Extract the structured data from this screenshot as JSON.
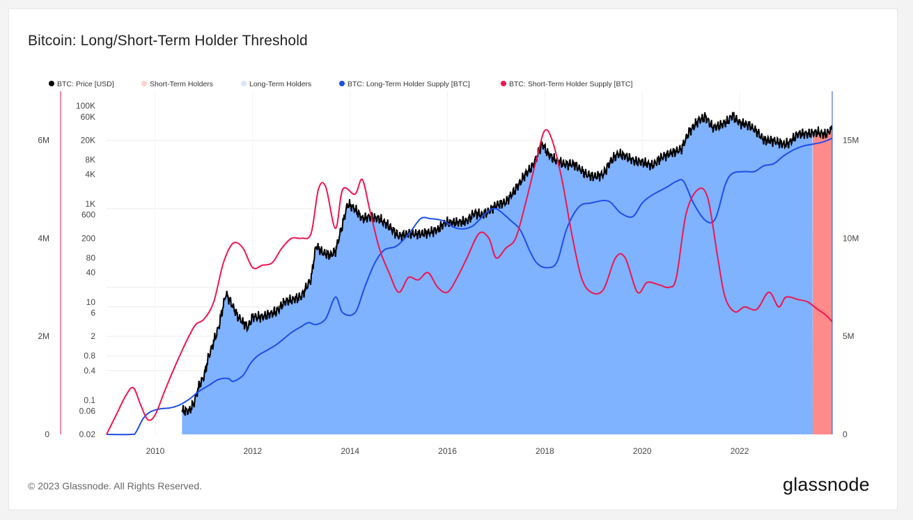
{
  "title": "Bitcoin: Long/Short-Term Holder Threshold",
  "footer": {
    "copyright": "© 2023 Glassnode. All Rights Reserved.",
    "brand": "glassnode"
  },
  "colors": {
    "price": "#000000",
    "sth_area": "#ff8a8a",
    "lth_area": "#7fb2ff",
    "lth_supply": "#1d4de8",
    "sth_supply": "#f0144f",
    "grid": "#ececec"
  },
  "legend": [
    {
      "label": "BTC: Price [USD]",
      "color": "#000000"
    },
    {
      "label": "Short-Term Holders",
      "color": "#ffd0d0"
    },
    {
      "label": "Long-Term Holders",
      "color": "#d6e6ff"
    },
    {
      "label": "BTC: Long-Term Holder Supply [BTC]",
      "color": "#1d4de8"
    },
    {
      "label": "BTC: Short-Term Holder Supply [BTC]",
      "color": "#f0144f"
    }
  ],
  "chart_data": {
    "type": "line",
    "title": "Bitcoin: Long/Short-Term Holder Threshold",
    "legend_position": "top-left",
    "x_ticks": [
      "2010",
      "2012",
      "2014",
      "2016",
      "2018",
      "2020",
      "2022"
    ],
    "x_range": [
      2009.0,
      2023.9
    ],
    "axes": {
      "left_outer": {
        "ticks": [
          "0",
          "2M",
          "4M",
          "6M"
        ],
        "range": [
          0,
          7000000
        ]
      },
      "left_price": {
        "scale": "log",
        "ticks": [
          "0.02",
          "0.06",
          "0.1",
          "0.4",
          "0.8",
          "2",
          "6",
          "10",
          "40",
          "80",
          "200",
          "600",
          "1K",
          "4K",
          "8K",
          "20K",
          "60K",
          "100K"
        ],
        "range": [
          0.02,
          200000
        ]
      },
      "right": {
        "ticks": [
          "0",
          "5M",
          "10M",
          "15M"
        ],
        "range": [
          0,
          17500000
        ]
      }
    },
    "area_regions": [
      {
        "name": "Long-Term Holders",
        "x_start": 2010.55,
        "x_end": 2023.5
      },
      {
        "name": "Short-Term Holders",
        "x_start": 2023.5,
        "x_end": 2023.9
      }
    ],
    "series": [
      {
        "name": "BTC: Price [USD]",
        "axis": "left_price",
        "points": [
          [
            2010.55,
            0.06
          ],
          [
            2010.7,
            0.06
          ],
          [
            2010.8,
            0.09
          ],
          [
            2010.9,
            0.2
          ],
          [
            2011.0,
            0.3
          ],
          [
            2011.1,
            0.8
          ],
          [
            2011.3,
            3
          ],
          [
            2011.45,
            15
          ],
          [
            2011.55,
            10
          ],
          [
            2011.7,
            5
          ],
          [
            2011.9,
            3
          ],
          [
            2012.0,
            5
          ],
          [
            2012.2,
            5
          ],
          [
            2012.5,
            6.5
          ],
          [
            2012.65,
            10
          ],
          [
            2012.8,
            11
          ],
          [
            2013.0,
            13
          ],
          [
            2013.2,
            30
          ],
          [
            2013.3,
            140
          ],
          [
            2013.45,
            100
          ],
          [
            2013.6,
            90
          ],
          [
            2013.7,
            110
          ],
          [
            2013.85,
            400
          ],
          [
            2013.95,
            1000
          ],
          [
            2014.1,
            800
          ],
          [
            2014.25,
            500
          ],
          [
            2014.4,
            550
          ],
          [
            2014.6,
            500
          ],
          [
            2014.8,
            350
          ],
          [
            2015.0,
            220
          ],
          [
            2015.2,
            250
          ],
          [
            2015.4,
            240
          ],
          [
            2015.6,
            260
          ],
          [
            2015.8,
            300
          ],
          [
            2015.95,
            420
          ],
          [
            2016.2,
            420
          ],
          [
            2016.4,
            450
          ],
          [
            2016.55,
            650
          ],
          [
            2016.7,
            600
          ],
          [
            2016.85,
            700
          ],
          [
            2017.0,
            950
          ],
          [
            2017.2,
            1100
          ],
          [
            2017.4,
            2000
          ],
          [
            2017.6,
            4000
          ],
          [
            2017.75,
            6000
          ],
          [
            2017.95,
            17000
          ],
          [
            2018.05,
            11000
          ],
          [
            2018.2,
            8000
          ],
          [
            2018.4,
            6500
          ],
          [
            2018.6,
            6500
          ],
          [
            2018.85,
            4000
          ],
          [
            2019.0,
            3600
          ],
          [
            2019.2,
            4000
          ],
          [
            2019.35,
            7500
          ],
          [
            2019.5,
            10500
          ],
          [
            2019.65,
            9500
          ],
          [
            2019.85,
            7500
          ],
          [
            2020.0,
            7200
          ],
          [
            2020.2,
            6000
          ],
          [
            2020.4,
            9000
          ],
          [
            2020.6,
            11000
          ],
          [
            2020.8,
            13000
          ],
          [
            2020.95,
            28000
          ],
          [
            2021.15,
            50000
          ],
          [
            2021.3,
            60000
          ],
          [
            2021.45,
            36000
          ],
          [
            2021.6,
            40000
          ],
          [
            2021.75,
            48000
          ],
          [
            2021.85,
            64000
          ],
          [
            2022.0,
            45000
          ],
          [
            2022.2,
            40000
          ],
          [
            2022.35,
            30000
          ],
          [
            2022.5,
            20000
          ],
          [
            2022.7,
            19500
          ],
          [
            2022.9,
            16500
          ],
          [
            2023.0,
            17000
          ],
          [
            2023.2,
            27000
          ],
          [
            2023.4,
            27000
          ],
          [
            2023.6,
            29000
          ],
          [
            2023.75,
            26000
          ],
          [
            2023.9,
            34000
          ]
        ]
      },
      {
        "name": "BTC: Long-Term Holder Supply [BTC]",
        "axis": "right",
        "points": [
          [
            2009.0,
            0
          ],
          [
            2009.5,
            0
          ],
          [
            2009.6,
            100000
          ],
          [
            2009.75,
            800000
          ],
          [
            2009.9,
            1150000
          ],
          [
            2010.1,
            1300000
          ],
          [
            2010.3,
            1350000
          ],
          [
            2010.5,
            1500000
          ],
          [
            2010.7,
            1800000
          ],
          [
            2010.9,
            2200000
          ],
          [
            2011.1,
            2500000
          ],
          [
            2011.3,
            2800000
          ],
          [
            2011.5,
            2850000
          ],
          [
            2011.6,
            2700000
          ],
          [
            2011.8,
            3000000
          ],
          [
            2011.95,
            3600000
          ],
          [
            2012.1,
            4000000
          ],
          [
            2012.3,
            4300000
          ],
          [
            2012.5,
            4600000
          ],
          [
            2012.8,
            5200000
          ],
          [
            2013.0,
            5500000
          ],
          [
            2013.15,
            5700000
          ],
          [
            2013.3,
            5600000
          ],
          [
            2013.5,
            5900000
          ],
          [
            2013.7,
            7000000
          ],
          [
            2013.85,
            6200000
          ],
          [
            2014.1,
            6200000
          ],
          [
            2014.3,
            7500000
          ],
          [
            2014.5,
            8700000
          ],
          [
            2014.7,
            9400000
          ],
          [
            2014.95,
            9600000
          ],
          [
            2015.2,
            10200000
          ],
          [
            2015.45,
            11000000
          ],
          [
            2015.65,
            11000000
          ],
          [
            2015.9,
            10900000
          ],
          [
            2016.2,
            10500000
          ],
          [
            2016.5,
            10600000
          ],
          [
            2016.8,
            11300000
          ],
          [
            2017.0,
            11500000
          ],
          [
            2017.3,
            10900000
          ],
          [
            2017.5,
            10400000
          ],
          [
            2017.7,
            9300000
          ],
          [
            2017.85,
            8700000
          ],
          [
            2018.05,
            8500000
          ],
          [
            2018.25,
            8800000
          ],
          [
            2018.45,
            10500000
          ],
          [
            2018.7,
            11600000
          ],
          [
            2018.95,
            11800000
          ],
          [
            2019.3,
            11900000
          ],
          [
            2019.55,
            11300000
          ],
          [
            2019.8,
            11100000
          ],
          [
            2020.0,
            11800000
          ],
          [
            2020.2,
            12200000
          ],
          [
            2020.5,
            12600000
          ],
          [
            2020.7,
            12900000
          ],
          [
            2020.85,
            12900000
          ],
          [
            2021.05,
            11800000
          ],
          [
            2021.3,
            10900000
          ],
          [
            2021.5,
            11000000
          ],
          [
            2021.7,
            12700000
          ],
          [
            2021.85,
            13300000
          ],
          [
            2022.1,
            13400000
          ],
          [
            2022.3,
            13400000
          ],
          [
            2022.5,
            13700000
          ],
          [
            2022.7,
            13800000
          ],
          [
            2022.9,
            14200000
          ],
          [
            2023.1,
            14500000
          ],
          [
            2023.3,
            14700000
          ],
          [
            2023.5,
            14800000
          ],
          [
            2023.7,
            14900000
          ],
          [
            2023.9,
            15100000
          ]
        ]
      },
      {
        "name": "BTC: Short-Term Holder Supply [BTC]",
        "axis": "left_outer",
        "points": [
          [
            2009.0,
            0
          ],
          [
            2009.2,
            400000
          ],
          [
            2009.4,
            800000
          ],
          [
            2009.55,
            950000
          ],
          [
            2009.7,
            600000
          ],
          [
            2009.85,
            300000
          ],
          [
            2010.0,
            400000
          ],
          [
            2010.2,
            900000
          ],
          [
            2010.5,
            1600000
          ],
          [
            2010.8,
            2200000
          ],
          [
            2011.0,
            2350000
          ],
          [
            2011.2,
            2700000
          ],
          [
            2011.4,
            3500000
          ],
          [
            2011.6,
            3900000
          ],
          [
            2011.8,
            3800000
          ],
          [
            2012.0,
            3400000
          ],
          [
            2012.2,
            3450000
          ],
          [
            2012.4,
            3500000
          ],
          [
            2012.6,
            3800000
          ],
          [
            2012.8,
            4000000
          ],
          [
            2013.0,
            4000000
          ],
          [
            2013.2,
            4100000
          ],
          [
            2013.35,
            5000000
          ],
          [
            2013.5,
            5050000
          ],
          [
            2013.7,
            4200000
          ],
          [
            2013.85,
            5000000
          ],
          [
            2014.1,
            4900000
          ],
          [
            2014.25,
            5200000
          ],
          [
            2014.4,
            4600000
          ],
          [
            2014.6,
            3800000
          ],
          [
            2014.8,
            3300000
          ],
          [
            2015.0,
            2900000
          ],
          [
            2015.2,
            3200000
          ],
          [
            2015.4,
            3150000
          ],
          [
            2015.6,
            3300000
          ],
          [
            2015.8,
            3000000
          ],
          [
            2016.0,
            2900000
          ],
          [
            2016.2,
            3200000
          ],
          [
            2016.4,
            3600000
          ],
          [
            2016.65,
            4100000
          ],
          [
            2016.85,
            4000000
          ],
          [
            2017.0,
            3600000
          ],
          [
            2017.2,
            3800000
          ],
          [
            2017.4,
            4000000
          ],
          [
            2017.6,
            4700000
          ],
          [
            2017.85,
            5700000
          ],
          [
            2018.0,
            6200000
          ],
          [
            2018.15,
            6000000
          ],
          [
            2018.35,
            5200000
          ],
          [
            2018.55,
            4100000
          ],
          [
            2018.75,
            3200000
          ],
          [
            2018.95,
            2900000
          ],
          [
            2019.2,
            2950000
          ],
          [
            2019.45,
            3600000
          ],
          [
            2019.65,
            3600000
          ],
          [
            2019.9,
            2900000
          ],
          [
            2020.1,
            3100000
          ],
          [
            2020.35,
            3050000
          ],
          [
            2020.55,
            3000000
          ],
          [
            2020.7,
            3200000
          ],
          [
            2020.9,
            4500000
          ],
          [
            2021.15,
            5000000
          ],
          [
            2021.35,
            4800000
          ],
          [
            2021.55,
            3600000
          ],
          [
            2021.7,
            2800000
          ],
          [
            2021.9,
            2500000
          ],
          [
            2022.1,
            2600000
          ],
          [
            2022.35,
            2550000
          ],
          [
            2022.6,
            2900000
          ],
          [
            2022.8,
            2600000
          ],
          [
            2022.95,
            2800000
          ],
          [
            2023.2,
            2750000
          ],
          [
            2023.4,
            2700000
          ],
          [
            2023.6,
            2550000
          ],
          [
            2023.75,
            2450000
          ],
          [
            2023.9,
            2300000
          ]
        ]
      }
    ]
  }
}
